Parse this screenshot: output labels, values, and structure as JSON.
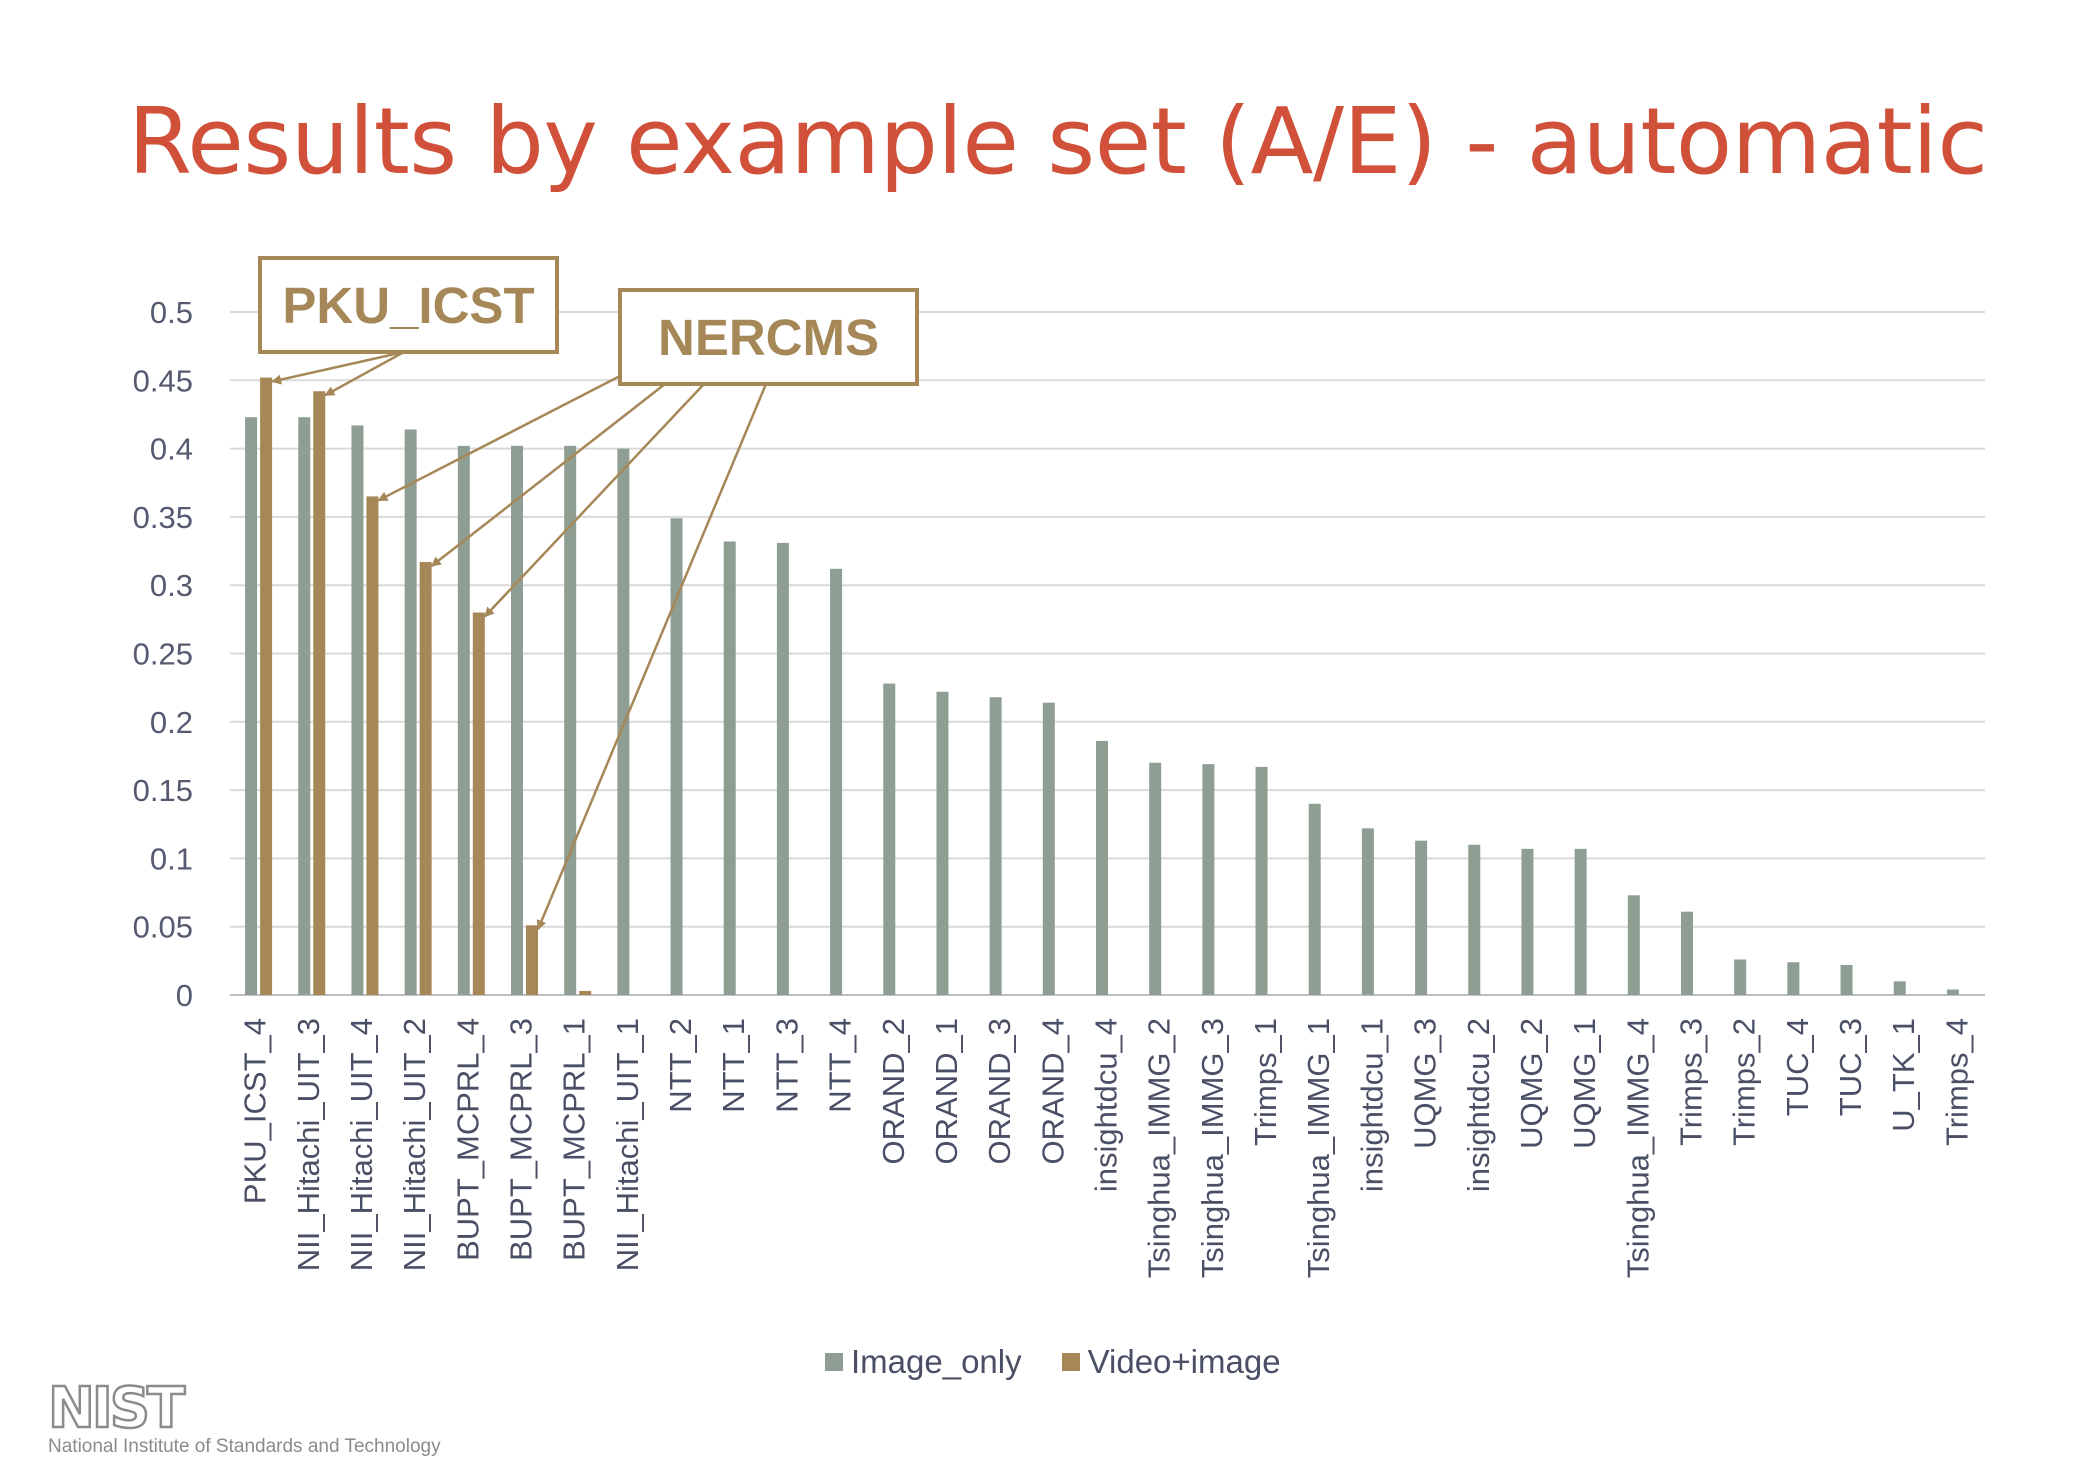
{
  "title": "Results by example set (A/E) - automatic",
  "logo": {
    "wordmark": "NIST",
    "tagline": "National Institute of Standards and Technology"
  },
  "callouts": [
    {
      "label": "PKU_ICST",
      "targets": [
        0,
        1
      ]
    },
    {
      "label": "NERCMS",
      "targets": [
        2,
        3,
        4,
        5
      ]
    }
  ],
  "colors": {
    "image_only": "#8f9e93",
    "video_image": "#a68858",
    "grid": "#d9d9d9",
    "callout": "#a68858"
  },
  "chart_data": {
    "type": "bar",
    "title": "",
    "xlabel": "",
    "ylabel": "",
    "ylim": [
      0,
      0.5
    ],
    "yticks": [
      0,
      0.05,
      0.1,
      0.15,
      0.2,
      0.25,
      0.3,
      0.35,
      0.4,
      0.45,
      0.5
    ],
    "grid": true,
    "legend_position": "bottom",
    "categories": [
      "PKU_ICST_4",
      "NII_Hitachi_UIT_3",
      "NII_Hitachi_UIT_4",
      "NII_Hitachi_UIT_2",
      "BUPT_MCPRL_4",
      "BUPT_MCPRL_3",
      "BUPT_MCPRL_1",
      "NII_Hitachi_UIT_1",
      "NTT_2",
      "NTT_1",
      "NTT_3",
      "NTT_4",
      "ORAND_2",
      "ORAND_1",
      "ORAND_3",
      "ORAND_4",
      "insightdcu_4",
      "Tsinghua_IMMG_2",
      "Tsinghua_IMMG_3",
      "Trimps_1",
      "Tsinghua_IMMG_1",
      "insightdcu_1",
      "UQMG_3",
      "insightdcu_2",
      "UQMG_2",
      "UQMG_1",
      "Tsinghua_IMMG_4",
      "Trimps_3",
      "Trimps_2",
      "TUC_4",
      "TUC_3",
      "U_TK_1",
      "Trimps_4"
    ],
    "series": [
      {
        "name": "Image_only",
        "values": [
          0.423,
          0.423,
          0.417,
          0.414,
          0.402,
          0.402,
          0.402,
          0.4,
          0.349,
          0.332,
          0.331,
          0.312,
          0.228,
          0.222,
          0.218,
          0.214,
          0.186,
          0.17,
          0.169,
          0.167,
          0.14,
          0.122,
          0.113,
          0.11,
          0.107,
          0.107,
          0.073,
          0.061,
          0.026,
          0.024,
          0.022,
          0.01,
          0.004
        ]
      },
      {
        "name": "Video+image",
        "values": [
          0.452,
          0.442,
          0.365,
          0.317,
          0.28,
          0.051,
          0.003,
          null,
          null,
          null,
          null,
          null,
          null,
          null,
          null,
          null,
          null,
          null,
          null,
          null,
          null,
          null,
          null,
          null,
          null,
          null,
          null,
          null,
          null,
          null,
          null,
          null,
          null
        ]
      }
    ]
  }
}
